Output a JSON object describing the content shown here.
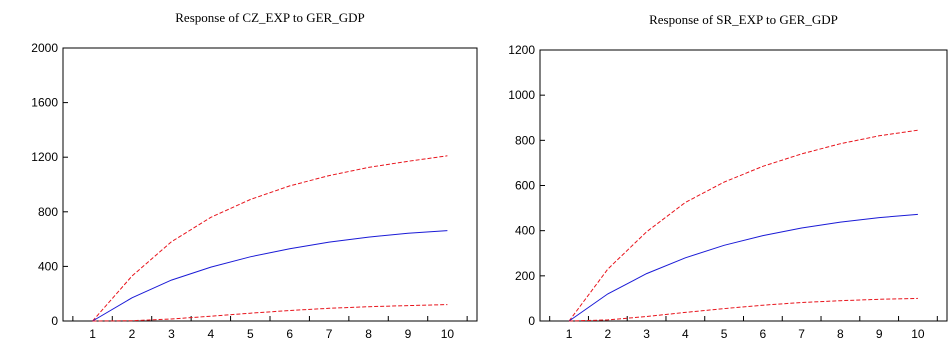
{
  "chart_data": [
    {
      "type": "line",
      "title": "Response of CZ_EXP to GER_GDP",
      "xlabel": "",
      "ylabel": "",
      "x": [
        1,
        2,
        3,
        4,
        5,
        6,
        7,
        8,
        9,
        10
      ],
      "xlim": [
        0.25,
        10.75
      ],
      "ylim": [
        0,
        2000
      ],
      "yticks": [
        0,
        400,
        800,
        1200,
        1600,
        2000
      ],
      "grid": false,
      "series": [
        {
          "role": "upper-band",
          "style": "dashed",
          "color": "#e8141c",
          "values": [
            0,
            330,
            580,
            760,
            890,
            990,
            1065,
            1125,
            1170,
            1210
          ]
        },
        {
          "role": "response",
          "style": "solid",
          "color": "#1a1ad6",
          "values": [
            0,
            170,
            300,
            395,
            470,
            530,
            578,
            615,
            643,
            662
          ]
        },
        {
          "role": "lower-band",
          "style": "dashed",
          "color": "#e8141c",
          "values": [
            0,
            2,
            15,
            35,
            57,
            77,
            93,
            105,
            113,
            120
          ]
        }
      ]
    },
    {
      "type": "line",
      "title": "Response of SR_EXP to GER_GDP",
      "xlabel": "",
      "ylabel": "",
      "x": [
        1,
        2,
        3,
        4,
        5,
        6,
        7,
        8,
        9,
        10
      ],
      "xlim": [
        0.25,
        10.75
      ],
      "ylim": [
        0,
        1200
      ],
      "yticks": [
        0,
        200,
        400,
        600,
        800,
        1000,
        1200
      ],
      "grid": false,
      "series": [
        {
          "role": "upper-band",
          "style": "dashed",
          "color": "#e8141c",
          "values": [
            0,
            230,
            395,
            525,
            615,
            685,
            740,
            785,
            820,
            845
          ]
        },
        {
          "role": "response",
          "style": "solid",
          "color": "#1a1ad6",
          "values": [
            0,
            120,
            210,
            280,
            335,
            378,
            412,
            438,
            458,
            472
          ]
        },
        {
          "role": "lower-band",
          "style": "dashed",
          "color": "#e8141c",
          "values": [
            0,
            5,
            20,
            38,
            55,
            70,
            82,
            90,
            96,
            100
          ]
        }
      ]
    }
  ]
}
